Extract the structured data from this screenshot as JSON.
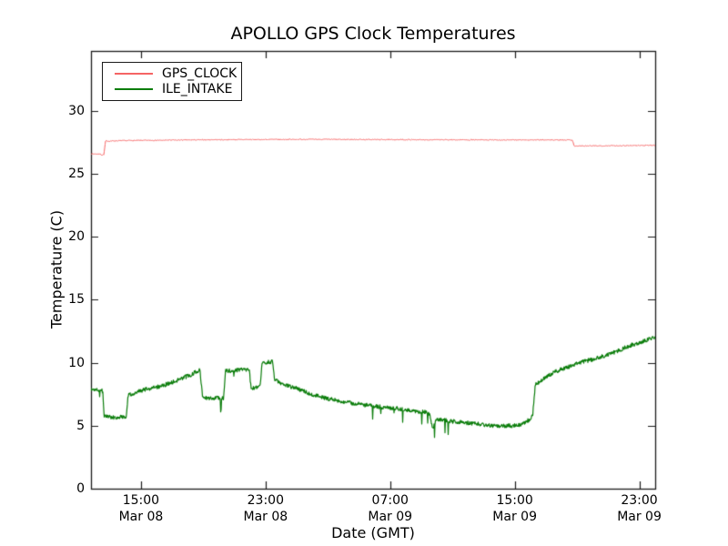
{
  "chart_data": {
    "type": "line",
    "title": "APOLLO GPS Clock Temperatures",
    "xlabel": "Date (GMT)",
    "ylabel": "Temperature (C)",
    "x_axis_unit": "hours since Mar 08 00:00 GMT",
    "xlim": [
      11.79,
      48.02
    ],
    "ylim": [
      0,
      34.77
    ],
    "grid": false,
    "legend_position": "upper-left",
    "background_color": "#ffffff",
    "spine_color": "#1a1a1a",
    "tick_direction": "in",
    "yticks": [
      {
        "value": 0,
        "label": "0"
      },
      {
        "value": 5,
        "label": "5"
      },
      {
        "value": 10,
        "label": "10"
      },
      {
        "value": 15,
        "label": "15"
      },
      {
        "value": 20,
        "label": "20"
      },
      {
        "value": 25,
        "label": "25"
      },
      {
        "value": 30,
        "label": "30"
      }
    ],
    "xticks": [
      {
        "hour": 15,
        "time": "15:00",
        "date": "Mar 08"
      },
      {
        "hour": 23,
        "time": "23:00",
        "date": "Mar 08"
      },
      {
        "hour": 31,
        "time": "07:00",
        "date": "Mar 09"
      },
      {
        "hour": 39,
        "time": "15:00",
        "date": "Mar 09"
      },
      {
        "hour": 47,
        "time": "23:00",
        "date": "Mar 09"
      }
    ],
    "series": [
      {
        "name": "GPS_CLOCK",
        "color": "#f56464",
        "line_width": 1.0,
        "noise_amp": 0.035,
        "spike_prob": 0,
        "spike_depth": 0,
        "points": [
          [
            11.79,
            26.6
          ],
          [
            12.35,
            26.58
          ],
          [
            12.5,
            26.5
          ],
          [
            12.62,
            26.55
          ],
          [
            12.72,
            27.6
          ],
          [
            14.0,
            27.65
          ],
          [
            20.0,
            27.72
          ],
          [
            26.0,
            27.75
          ],
          [
            32.0,
            27.72
          ],
          [
            38.0,
            27.7
          ],
          [
            42.7,
            27.7
          ],
          [
            42.82,
            27.22
          ],
          [
            45.0,
            27.24
          ],
          [
            48.02,
            27.28
          ]
        ]
      },
      {
        "name": "ILE_INTAKE",
        "color": "#0b7d0b",
        "line_width": 1.2,
        "noise_amp": 0.16,
        "spike_prob": 0.012,
        "spike_depth": 1.1,
        "points": [
          [
            11.79,
            7.85
          ],
          [
            12.2,
            7.9
          ],
          [
            12.55,
            7.75
          ],
          [
            12.63,
            5.8
          ],
          [
            13.3,
            5.65
          ],
          [
            14.05,
            5.75
          ],
          [
            14.18,
            7.45
          ],
          [
            15.2,
            7.85
          ],
          [
            16.2,
            8.1
          ],
          [
            17.2,
            8.55
          ],
          [
            18.2,
            9.05
          ],
          [
            18.78,
            9.45
          ],
          [
            18.97,
            7.2
          ],
          [
            20.3,
            7.2
          ],
          [
            20.43,
            9.35
          ],
          [
            21.5,
            9.45
          ],
          [
            21.95,
            9.5
          ],
          [
            22.07,
            7.95
          ],
          [
            22.65,
            8.05
          ],
          [
            22.77,
            10.0
          ],
          [
            23.45,
            10.1
          ],
          [
            23.58,
            8.65
          ],
          [
            24.2,
            8.25
          ],
          [
            24.9,
            8.0
          ],
          [
            26.0,
            7.5
          ],
          [
            27.0,
            7.15
          ],
          [
            28.5,
            6.8
          ],
          [
            30.0,
            6.55
          ],
          [
            31.5,
            6.35
          ],
          [
            32.8,
            6.15
          ],
          [
            33.3,
            6.1
          ],
          [
            33.55,
            5.9
          ],
          [
            33.75,
            4.7
          ],
          [
            33.95,
            5.55
          ],
          [
            35.0,
            5.35
          ],
          [
            36.5,
            5.15
          ],
          [
            37.8,
            5.0
          ],
          [
            38.8,
            5.0
          ],
          [
            39.5,
            5.15
          ],
          [
            39.9,
            5.45
          ],
          [
            40.15,
            5.8
          ],
          [
            40.32,
            8.3
          ],
          [
            40.7,
            8.6
          ],
          [
            41.6,
            9.3
          ],
          [
            42.6,
            9.75
          ],
          [
            43.3,
            10.05
          ],
          [
            44.5,
            10.45
          ],
          [
            45.5,
            10.9
          ],
          [
            46.5,
            11.4
          ],
          [
            47.3,
            11.75
          ],
          [
            48.02,
            12.05
          ]
        ]
      }
    ]
  }
}
